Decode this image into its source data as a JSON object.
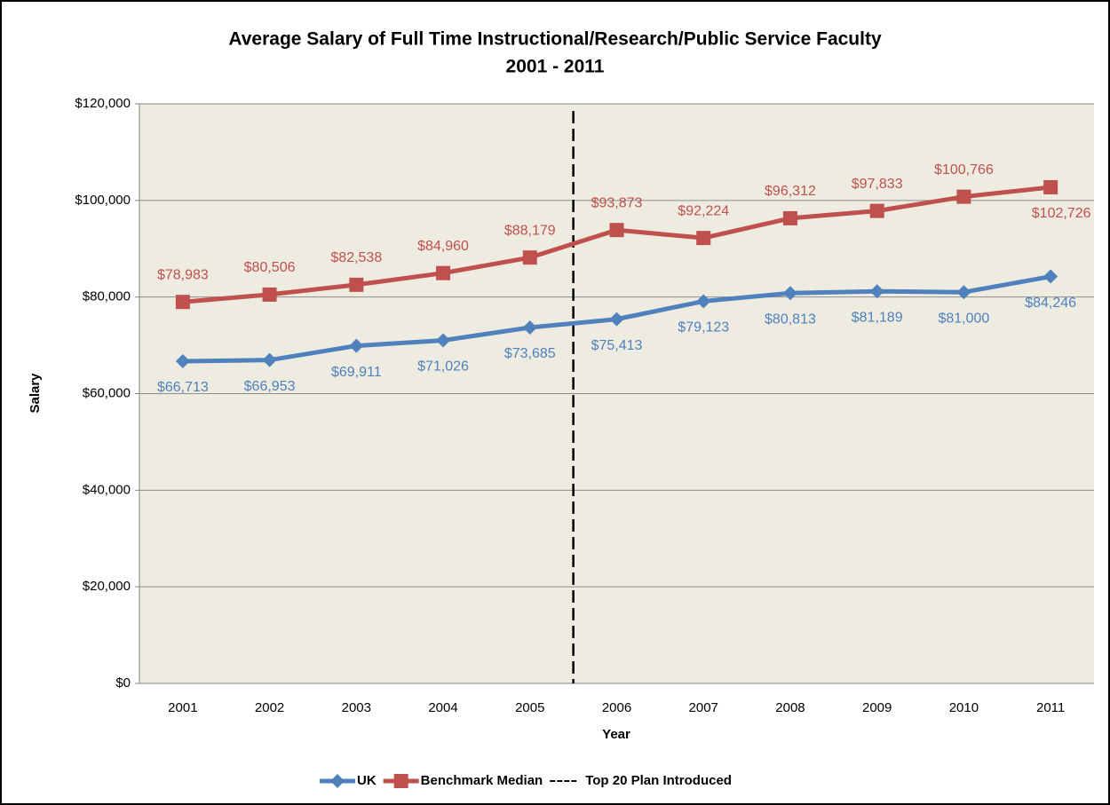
{
  "chart_data": {
    "type": "line",
    "title": "Average Salary of Full Time Instructional/Research/Public Service Faculty",
    "subtitle": "2001 - 2011",
    "xlabel": "Year",
    "ylabel": "Salary",
    "x": [
      2001,
      2002,
      2003,
      2004,
      2005,
      2006,
      2007,
      2008,
      2009,
      2010,
      2011
    ],
    "xlim": [
      2000.5,
      2011.5
    ],
    "xticks": [
      2001,
      2002,
      2003,
      2004,
      2005,
      2006,
      2007,
      2008,
      2009,
      2010,
      2011
    ],
    "ylim": [
      0,
      120000
    ],
    "yticks": [
      {
        "value": 0,
        "label": "$0"
      },
      {
        "value": 20000,
        "label": "$20,000"
      },
      {
        "value": 40000,
        "label": "$40,000"
      },
      {
        "value": 60000,
        "label": "$60,000"
      },
      {
        "value": 80000,
        "label": "$80,000"
      },
      {
        "value": 100000,
        "label": "$100,000"
      },
      {
        "value": 120000,
        "label": "$120,000"
      }
    ],
    "grid": true,
    "series": [
      {
        "name": "UK",
        "color": "#4f81bd",
        "marker": "diamond",
        "values": [
          66713,
          66953,
          69911,
          71026,
          73685,
          75413,
          79123,
          80813,
          81189,
          81000,
          84246
        ],
        "value_labels": [
          "$66,713",
          "$66,953",
          "$69,911",
          "$71,026",
          "$73,685",
          "$75,413",
          "$79,123",
          "$80,813",
          "$81,189",
          "$81,000",
          "$84,246"
        ]
      },
      {
        "name": "Benchmark Median",
        "color": "#c0504d",
        "marker": "square",
        "values": [
          78983,
          80506,
          82538,
          84960,
          88179,
          93873,
          92224,
          96312,
          97833,
          100766,
          102726
        ],
        "value_labels": [
          "$78,983",
          "$80,506",
          "$82,538",
          "$84,960",
          "$88,179",
          "$93,873",
          "$92,224",
          "$96,312",
          "$97,833",
          "$100,766",
          "$102,726"
        ]
      }
    ],
    "vline": {
      "name": "Top 20 Plan Introduced",
      "x": 2005.5,
      "color": "#000000"
    },
    "legend": "bottom"
  }
}
